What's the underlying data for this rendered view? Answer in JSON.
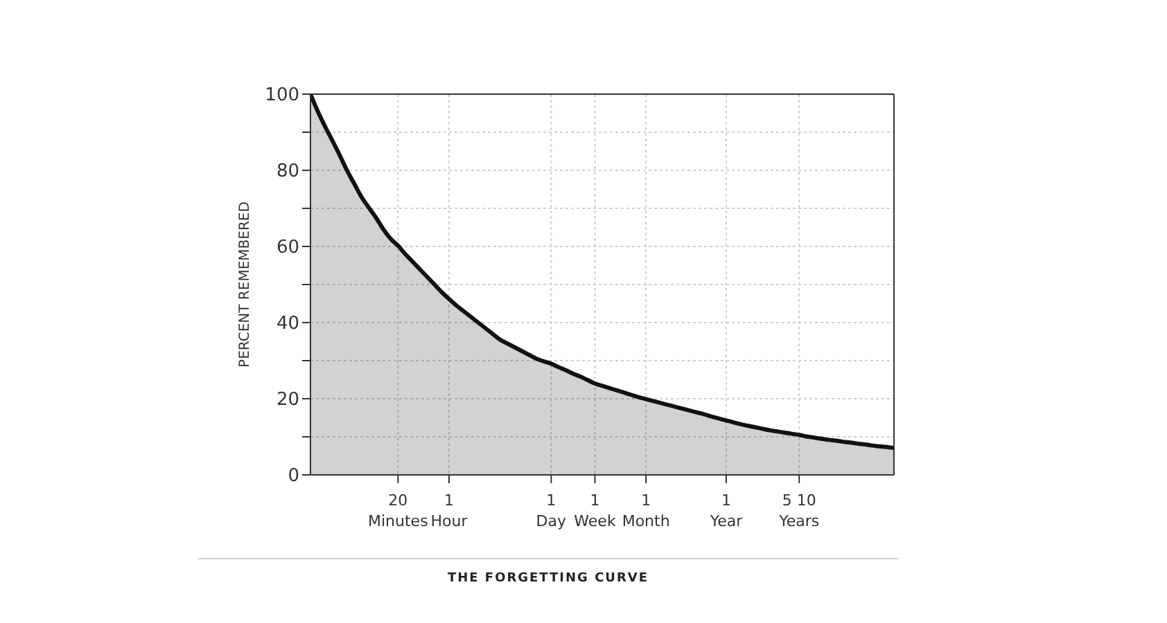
{
  "chart_data": {
    "type": "area",
    "title": "THE FORGETTING CURVE",
    "ylabel": "PERCENT REMEMBERED",
    "categories": [
      null,
      null,
      null,
      null,
      null,
      null,
      null,
      null,
      null,
      null,
      null,
      null,
      "20 Minutes",
      null,
      null,
      null,
      null,
      null,
      null,
      "1 Hour",
      null,
      null,
      null,
      null,
      null,
      null,
      null,
      null,
      null,
      null,
      null,
      null,
      null,
      "1 Day",
      null,
      null,
      null,
      null,
      null,
      "1 Week",
      null,
      null,
      null,
      null,
      null,
      null,
      "1 Month",
      null,
      null,
      null,
      null,
      null,
      null,
      null,
      null,
      null,
      null,
      "1 Year",
      null,
      null,
      null,
      null,
      null,
      null,
      null,
      null,
      null,
      "5 10 Years",
      null,
      null,
      null,
      null,
      null,
      null,
      null,
      null,
      null,
      null,
      null,
      null,
      null
    ],
    "series": [
      {
        "color": "#111111",
        "values": [
          100,
          95.5,
          91.5,
          87.8,
          84,
          80,
          76.5,
          73,
          70.2,
          67.5,
          64.5,
          62,
          60.2,
          58,
          56,
          54,
          52,
          50,
          48,
          46.2,
          44.5,
          43,
          41.5,
          40,
          38.5,
          37,
          35.5,
          34.5,
          33.5,
          32.5,
          31.5,
          30.5,
          29.8,
          29.2,
          28.3,
          27.5,
          26.6,
          25.8,
          24.9,
          24,
          23.4,
          22.8,
          22.2,
          21.6,
          21,
          20.4,
          19.9,
          19.4,
          18.9,
          18.4,
          17.9,
          17.4,
          16.9,
          16.4,
          15.9,
          15.3,
          14.8,
          14.3,
          13.8,
          13.3,
          12.9,
          12.5,
          12.1,
          11.7,
          11.4,
          11.1,
          10.8,
          10.5,
          10.1,
          9.8,
          9.5,
          9.2,
          9,
          8.7,
          8.5,
          8.2,
          8,
          7.7,
          7.5,
          7.3,
          7.1
        ]
      }
    ],
    "ylim": [
      0,
      100
    ],
    "yticks": [
      0,
      {
        "value": 10,
        "label": null
      },
      20,
      {
        "value": 30,
        "label": null
      },
      40,
      {
        "value": 50,
        "label": null
      },
      60,
      {
        "value": 70,
        "label": null
      },
      80,
      {
        "value": 90,
        "label": null
      },
      100
    ],
    "grid": true,
    "legend": false,
    "marker": "none",
    "line_style": "solid"
  }
}
